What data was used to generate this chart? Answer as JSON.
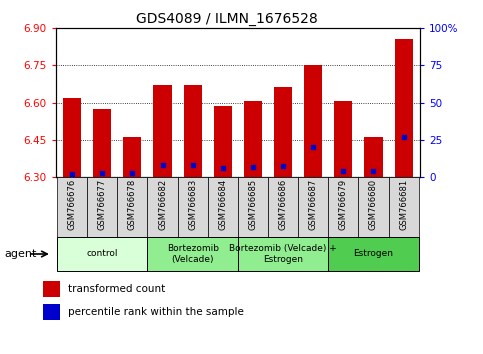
{
  "title": "GDS4089 / ILMN_1676528",
  "samples": [
    "GSM766676",
    "GSM766677",
    "GSM766678",
    "GSM766682",
    "GSM766683",
    "GSM766684",
    "GSM766685",
    "GSM766686",
    "GSM766687",
    "GSM766679",
    "GSM766680",
    "GSM766681"
  ],
  "red_values": [
    6.62,
    6.575,
    6.46,
    6.67,
    6.67,
    6.585,
    6.605,
    6.665,
    6.75,
    6.605,
    6.46,
    6.855
  ],
  "blue_pct": [
    2,
    2.5,
    2.5,
    8,
    8,
    6,
    7,
    7.5,
    20,
    4,
    4,
    27
  ],
  "base": 6.3,
  "ylim_left": [
    6.3,
    6.9
  ],
  "ylim_right": [
    0,
    100
  ],
  "yticks_left": [
    6.3,
    6.45,
    6.6,
    6.75,
    6.9
  ],
  "yticks_right": [
    0,
    25,
    50,
    75,
    100
  ],
  "ytick_labels_right": [
    "0",
    "25",
    "50",
    "75",
    "100%"
  ],
  "groups": [
    {
      "label": "control",
      "start": 0,
      "end": 3,
      "color": "#d8ffd8"
    },
    {
      "label": "Bortezomib\n(Velcade)",
      "start": 3,
      "end": 6,
      "color": "#90ee90"
    },
    {
      "label": "Bortezomib (Velcade) +\nEstrogen",
      "start": 6,
      "end": 9,
      "color": "#90ee90"
    },
    {
      "label": "Estrogen",
      "start": 9,
      "end": 12,
      "color": "#50cc50"
    }
  ],
  "bar_color": "#cc0000",
  "dot_color": "#0000cc",
  "bar_width": 0.6,
  "agent_label": "agent",
  "legend_red": "transformed count",
  "legend_blue": "percentile rank within the sample"
}
